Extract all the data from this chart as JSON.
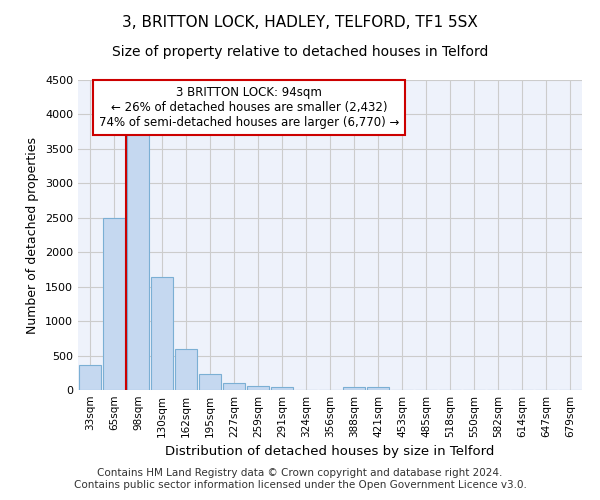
{
  "title": "3, BRITTON LOCK, HADLEY, TELFORD, TF1 5SX",
  "subtitle": "Size of property relative to detached houses in Telford",
  "xlabel": "Distribution of detached houses by size in Telford",
  "ylabel": "Number of detached properties",
  "categories": [
    "33sqm",
    "65sqm",
    "98sqm",
    "130sqm",
    "162sqm",
    "195sqm",
    "227sqm",
    "259sqm",
    "291sqm",
    "324sqm",
    "356sqm",
    "388sqm",
    "421sqm",
    "453sqm",
    "485sqm",
    "518sqm",
    "550sqm",
    "582sqm",
    "614sqm",
    "647sqm",
    "679sqm"
  ],
  "values": [
    370,
    2500,
    3750,
    1640,
    590,
    230,
    105,
    60,
    40,
    0,
    0,
    50,
    50,
    0,
    0,
    0,
    0,
    0,
    0,
    0,
    0
  ],
  "bar_color": "#c5d8f0",
  "bar_edge_color": "#7bafd4",
  "property_line_x": 2.0,
  "annotation_text": "3 BRITTON LOCK: 94sqm\n← 26% of detached houses are smaller (2,432)\n74% of semi-detached houses are larger (6,770) →",
  "annotation_box_color": "#ffffff",
  "annotation_box_edge_color": "#cc0000",
  "vline_color": "#cc0000",
  "ylim": [
    0,
    4500
  ],
  "yticks": [
    0,
    500,
    1000,
    1500,
    2000,
    2500,
    3000,
    3500,
    4000,
    4500
  ],
  "grid_color": "#cccccc",
  "bg_color": "#eef2fb",
  "title_fontsize": 11,
  "subtitle_fontsize": 10,
  "footer_text": "Contains HM Land Registry data © Crown copyright and database right 2024.\nContains public sector information licensed under the Open Government Licence v3.0.",
  "footer_fontsize": 7.5
}
